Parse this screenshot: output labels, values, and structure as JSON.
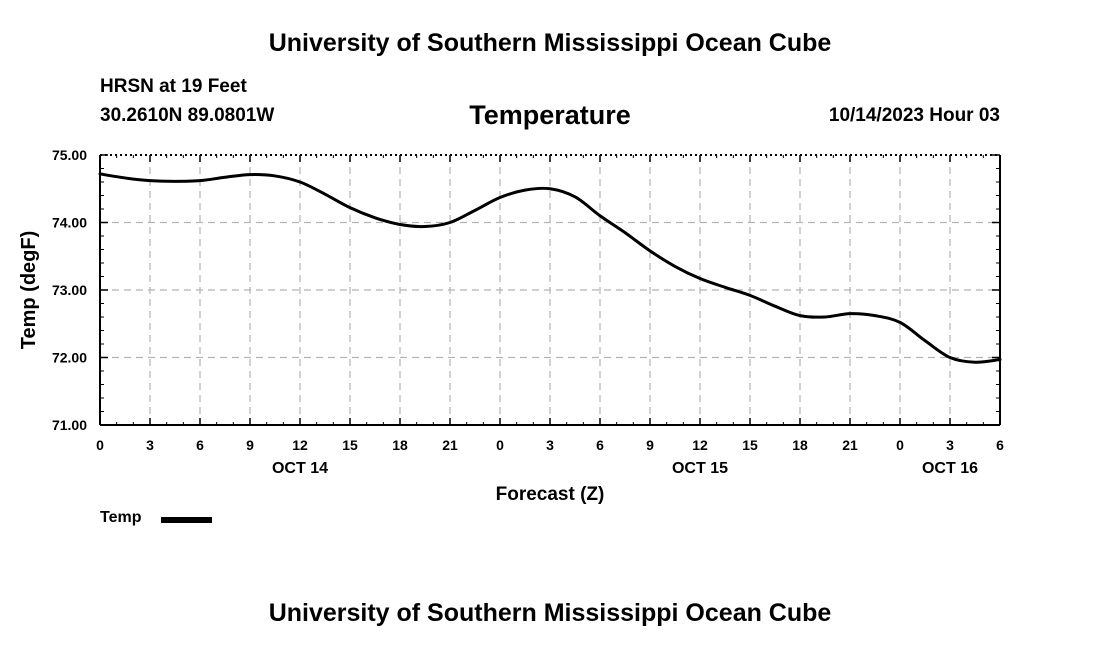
{
  "header": {
    "title": "University of Southern Mississippi Ocean Cube",
    "station": "HRSN at 19 Feet",
    "coordinates": "30.2610N  89.0801W",
    "variable_title": "Temperature",
    "datetime": "10/14/2023 Hour 03"
  },
  "footer": {
    "title": "University of Southern Mississippi Ocean Cube"
  },
  "legend": {
    "label": "Temp"
  },
  "chart_data": {
    "type": "line",
    "title": "Temperature",
    "xlabel": "Forecast (Z)",
    "ylabel": "Temp (degF)",
    "xlim": [
      0,
      54
    ],
    "ylim": [
      71.0,
      75.0
    ],
    "y_ticks": [
      "71.00",
      "72.00",
      "73.00",
      "74.00",
      "75.00"
    ],
    "x_tick_labels": [
      "0",
      "3",
      "6",
      "9",
      "12",
      "15",
      "18",
      "21",
      "0",
      "3",
      "6",
      "9",
      "12",
      "15",
      "18",
      "21",
      "0",
      "3",
      "6"
    ],
    "date_labels": [
      {
        "label": "OCT 14",
        "hour": 12
      },
      {
        "label": "OCT 15",
        "hour": 36
      },
      {
        "label": "OCT 16",
        "hour": 51
      }
    ],
    "grid": true,
    "line_color": "#000000",
    "series": [
      {
        "name": "Temp",
        "x": [
          0,
          1.5,
          3,
          4.5,
          6,
          7.5,
          9,
          10.5,
          12,
          13.5,
          15,
          16.5,
          18,
          19.5,
          21,
          22.5,
          24,
          25.5,
          27,
          28.5,
          30,
          31.5,
          33,
          34.5,
          36,
          37.5,
          39,
          40.5,
          42,
          43.5,
          45,
          46.5,
          48,
          49.5,
          51,
          52.5,
          54
        ],
        "values": [
          74.72,
          74.66,
          74.62,
          74.61,
          74.62,
          74.67,
          74.71,
          74.69,
          74.6,
          74.42,
          74.22,
          74.07,
          73.97,
          73.94,
          74.0,
          74.18,
          74.37,
          74.48,
          74.5,
          74.38,
          74.1,
          73.85,
          73.58,
          73.35,
          73.17,
          73.04,
          72.92,
          72.76,
          72.62,
          72.6,
          72.65,
          72.62,
          72.52,
          72.25,
          72.0,
          71.93,
          71.97
        ]
      }
    ]
  }
}
